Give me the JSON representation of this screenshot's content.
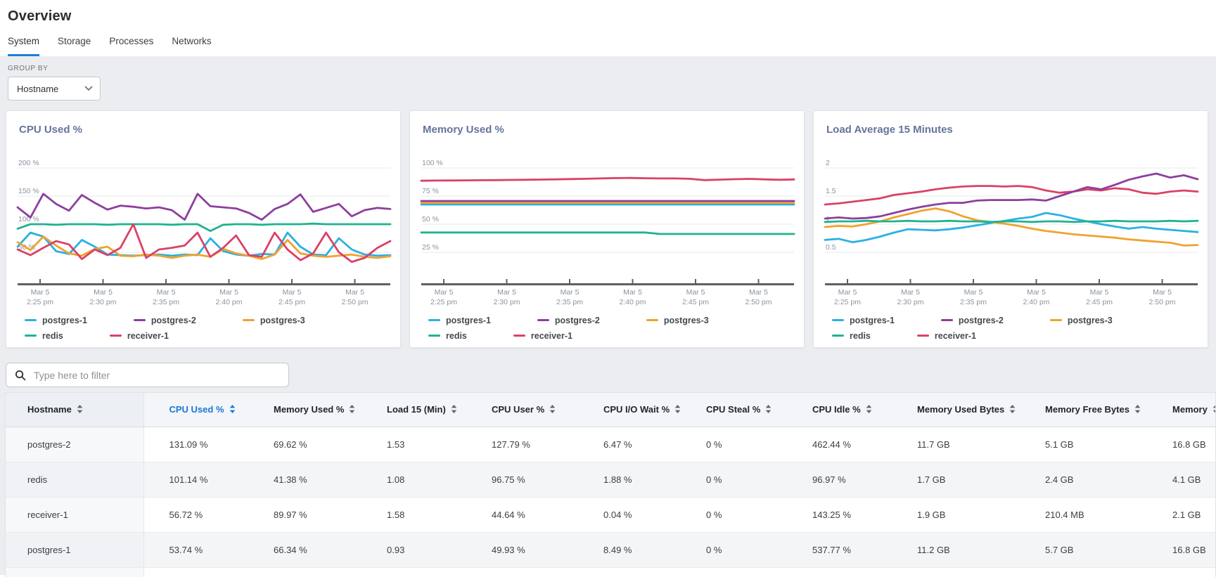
{
  "page": {
    "title": "Overview"
  },
  "tabs": [
    {
      "label": "System",
      "active": true
    },
    {
      "label": "Storage",
      "active": false
    },
    {
      "label": "Processes",
      "active": false
    },
    {
      "label": "Networks",
      "active": false
    }
  ],
  "group_by": {
    "label": "GROUP BY",
    "value": "Hostname"
  },
  "filter": {
    "placeholder": "Type here to filter"
  },
  "colors": {
    "accent": "#1878d8",
    "tab_underline": "#1b7fd6",
    "series": {
      "postgres-1": "#2ab1e3",
      "postgres-2": "#8c3f9e",
      "postgres-3": "#f0a22e",
      "redis": "#1eb48f",
      "receiver-1": "#da4167"
    }
  },
  "chart_data": [
    {
      "type": "line",
      "title": "CPU Used %",
      "ylabel": "%",
      "ylim": [
        -5,
        210
      ],
      "grid": true,
      "legend_position": "bottom",
      "gridlines": [
        {
          "value": 200,
          "label": "200 %"
        },
        {
          "value": 150,
          "label": "150 %"
        },
        {
          "value": 100,
          "label": "100 %"
        },
        {
          "value": 50,
          "label": "50 %"
        }
      ],
      "x_ticks": [
        {
          "line1": "Mar 5",
          "line2": "2:25 pm"
        },
        {
          "line1": "Mar 5",
          "line2": "2:30 pm"
        },
        {
          "line1": "Mar 5",
          "line2": "2:35 pm"
        },
        {
          "line1": "Mar 5",
          "line2": "2:40 pm"
        },
        {
          "line1": "Mar 5",
          "line2": "2:45 pm"
        },
        {
          "line1": "Mar 5",
          "line2": "2:50 pm"
        }
      ],
      "draw_order": [
        0,
        2,
        1,
        3,
        4
      ],
      "series": [
        {
          "name": "postgres-1",
          "values": [
            60,
            85,
            78,
            52,
            47,
            72,
            60,
            46,
            45,
            44,
            45,
            46,
            44,
            46,
            45,
            75,
            52,
            46,
            44,
            47,
            46,
            85,
            60,
            46,
            45,
            75,
            55,
            46,
            44,
            45
          ]
        },
        {
          "name": "postgres-2",
          "values": [
            130,
            112,
            154,
            136,
            124,
            152,
            138,
            126,
            133,
            131,
            128,
            130,
            125,
            108,
            154,
            132,
            130,
            128,
            120,
            108,
            127,
            136,
            153,
            122,
            129,
            136,
            114,
            125,
            129,
            127
          ]
        },
        {
          "name": "postgres-3",
          "values": [
            68,
            54,
            78,
            62,
            48,
            44,
            56,
            60,
            44,
            43,
            46,
            44,
            40,
            44,
            46,
            42,
            56,
            48,
            44,
            38,
            46,
            72,
            48,
            44,
            42,
            44,
            46,
            42,
            40,
            43
          ]
        },
        {
          "name": "redis",
          "values": [
            92,
            100,
            100,
            99,
            100,
            100,
            100,
            99,
            100,
            100,
            100,
            100,
            99,
            100,
            100,
            88,
            99,
            100,
            100,
            99,
            100,
            100,
            100,
            101,
            100,
            100,
            100,
            100,
            100,
            100
          ]
        },
        {
          "name": "receiver-1",
          "values": [
            55,
            45,
            58,
            70,
            64,
            38,
            55,
            45,
            58,
            100,
            40,
            55,
            58,
            62,
            85,
            42,
            58,
            80,
            45,
            42,
            85,
            55,
            36,
            48,
            85,
            50,
            33,
            40,
            58,
            70
          ]
        }
      ]
    },
    {
      "type": "line",
      "title": "Memory Used %",
      "ylabel": "%",
      "ylim": [
        -2.5,
        105
      ],
      "grid": true,
      "legend_position": "bottom",
      "gridlines": [
        {
          "value": 100,
          "label": "100 %"
        },
        {
          "value": 75,
          "label": "75 %"
        },
        {
          "value": 50,
          "label": "50 %"
        },
        {
          "value": 25,
          "label": "25 %"
        }
      ],
      "x_ticks": [
        {
          "line1": "Mar 5",
          "line2": "2:25 pm"
        },
        {
          "line1": "Mar 5",
          "line2": "2:30 pm"
        },
        {
          "line1": "Mar 5",
          "line2": "2:35 pm"
        },
        {
          "line1": "Mar 5",
          "line2": "2:40 pm"
        },
        {
          "line1": "Mar 5",
          "line2": "2:45 pm"
        },
        {
          "line1": "Mar 5",
          "line2": "2:50 pm"
        }
      ],
      "draw_order": [
        0,
        2,
        1,
        3,
        4
      ],
      "series": [
        {
          "name": "postgres-1",
          "values": [
            67.5,
            67.5,
            67.5,
            67.5,
            67.5,
            67.5,
            67.5,
            67.5,
            67.5,
            67.5,
            67.5,
            67.5,
            67.5,
            67.5,
            67.5,
            67.5,
            67.5,
            67.5,
            67.5,
            67.5,
            67.5,
            67.5,
            67.5,
            67.5,
            67.5,
            67.5
          ]
        },
        {
          "name": "postgres-2",
          "values": [
            70.6,
            70.6,
            70.6,
            70.6,
            70.6,
            70.6,
            70.6,
            70.6,
            70.6,
            70.6,
            70.6,
            70.6,
            70.6,
            70.6,
            70.6,
            70.6,
            70.6,
            70.6,
            70.6,
            70.6,
            70.6,
            70.6,
            70.6,
            70.6,
            70.6,
            70.6
          ]
        },
        {
          "name": "postgres-3",
          "values": [
            69,
            69,
            69,
            69,
            69,
            69,
            69,
            69,
            69,
            69,
            69,
            69,
            69,
            69,
            69,
            69,
            69,
            69,
            69,
            69,
            69,
            69,
            69,
            69,
            69,
            69
          ]
        },
        {
          "name": "redis",
          "values": [
            42.6,
            42.6,
            42.6,
            42.6,
            42.6,
            42.6,
            42.6,
            42.6,
            42.6,
            42.6,
            42.6,
            42.6,
            42.6,
            42.6,
            42.6,
            42.6,
            41.3,
            41.3,
            41.3,
            41.3,
            41.3,
            41.3,
            41.3,
            41.3,
            41.3,
            41.3
          ]
        },
        {
          "name": "receiver-1",
          "values": [
            88.6,
            88.8,
            88.9,
            89.0,
            89.1,
            89.2,
            89.4,
            89.5,
            89.7,
            89.9,
            90.1,
            90.4,
            90.7,
            91.0,
            91.1,
            90.9,
            90.7,
            90.7,
            90.4,
            89.2,
            89.6,
            90.0,
            90.3,
            89.9,
            89.5,
            89.8
          ]
        }
      ]
    },
    {
      "type": "line",
      "title": "Load Average 15 Minutes",
      "ylabel": "",
      "ylim": [
        -0.05,
        2.1
      ],
      "grid": true,
      "legend_position": "bottom",
      "gridlines": [
        {
          "value": 2,
          "label": "2"
        },
        {
          "value": 1.5,
          "label": "1.5"
        },
        {
          "value": 1,
          "label": "1"
        },
        {
          "value": 0.5,
          "label": "0.5"
        }
      ],
      "x_ticks": [
        {
          "line1": "Mar 5",
          "line2": "2:25 pm"
        },
        {
          "line1": "Mar 5",
          "line2": "2:30 pm"
        },
        {
          "line1": "Mar 5",
          "line2": "2:35 pm"
        },
        {
          "line1": "Mar 5",
          "line2": "2:40 pm"
        },
        {
          "line1": "Mar 5",
          "line2": "2:45 pm"
        },
        {
          "line1": "Mar 5",
          "line2": "2:50 pm"
        }
      ],
      "draw_order": [
        0,
        2,
        3,
        4,
        1
      ],
      "series": [
        {
          "name": "postgres-1",
          "values": [
            0.72,
            0.74,
            0.68,
            0.72,
            0.78,
            0.85,
            0.91,
            0.9,
            0.89,
            0.91,
            0.94,
            0.98,
            1.02,
            1.06,
            1.1,
            1.13,
            1.2,
            1.16,
            1.1,
            1.05,
            1.0,
            0.96,
            0.92,
            0.95,
            0.92,
            0.9,
            0.88,
            0.86
          ]
        },
        {
          "name": "postgres-2",
          "values": [
            1.1,
            1.12,
            1.1,
            1.11,
            1.14,
            1.2,
            1.26,
            1.31,
            1.35,
            1.38,
            1.38,
            1.42,
            1.43,
            1.43,
            1.43,
            1.44,
            1.42,
            1.5,
            1.58,
            1.66,
            1.62,
            1.7,
            1.79,
            1.85,
            1.9,
            1.83,
            1.87,
            1.8
          ]
        },
        {
          "name": "postgres-3",
          "values": [
            0.95,
            0.97,
            0.96,
            1.0,
            1.05,
            1.12,
            1.18,
            1.24,
            1.28,
            1.23,
            1.14,
            1.07,
            1.04,
            1.01,
            0.97,
            0.92,
            0.88,
            0.85,
            0.82,
            0.8,
            0.78,
            0.76,
            0.73,
            0.71,
            0.69,
            0.67,
            0.62,
            0.63
          ]
        },
        {
          "name": "redis",
          "values": [
            1.04,
            1.05,
            1.05,
            1.06,
            1.05,
            1.05,
            1.06,
            1.05,
            1.05,
            1.06,
            1.05,
            1.05,
            1.04,
            1.05,
            1.05,
            1.04,
            1.05,
            1.05,
            1.04,
            1.05,
            1.05,
            1.06,
            1.05,
            1.05,
            1.05,
            1.06,
            1.05,
            1.06
          ]
        },
        {
          "name": "receiver-1",
          "values": [
            1.35,
            1.37,
            1.4,
            1.43,
            1.46,
            1.52,
            1.55,
            1.58,
            1.62,
            1.65,
            1.67,
            1.68,
            1.68,
            1.67,
            1.68,
            1.66,
            1.6,
            1.56,
            1.58,
            1.62,
            1.6,
            1.64,
            1.62,
            1.56,
            1.54,
            1.58,
            1.6,
            1.58
          ]
        }
      ]
    }
  ],
  "table": {
    "columns": [
      {
        "label": "Hostname",
        "sortable": true,
        "sorted": false
      },
      {
        "label": "CPU Used %",
        "sortable": true,
        "sorted": true
      },
      {
        "label": "Memory Used %",
        "sortable": true,
        "sorted": false
      },
      {
        "label": "Load 15 (Min)",
        "sortable": true,
        "sorted": false
      },
      {
        "label": "CPU User %",
        "sortable": true,
        "sorted": false
      },
      {
        "label": "CPU I/O Wait %",
        "sortable": true,
        "sorted": false
      },
      {
        "label": "CPU Steal %",
        "sortable": true,
        "sorted": false
      },
      {
        "label": "CPU Idle %",
        "sortable": true,
        "sorted": false
      },
      {
        "label": "Memory Used Bytes",
        "sortable": true,
        "sorted": false
      },
      {
        "label": "Memory Free Bytes",
        "sortable": true,
        "sorted": false
      },
      {
        "label": "Memory",
        "sortable": true,
        "sorted": false
      }
    ],
    "rows": [
      [
        "postgres-2",
        "131.09 %",
        "69.62 %",
        "1.53",
        "127.79 %",
        "6.47 %",
        "0 %",
        "462.44 %",
        "11.7 GB",
        "5.1 GB",
        "16.8 GB"
      ],
      [
        "redis",
        "101.14 %",
        "41.38 %",
        "1.08",
        "96.75 %",
        "1.88 %",
        "0 %",
        "96.97 %",
        "1.7 GB",
        "2.4 GB",
        "4.1 GB"
      ],
      [
        "receiver-1",
        "56.72 %",
        "89.97 %",
        "1.58",
        "44.64 %",
        "0.04 %",
        "0 %",
        "143.25 %",
        "1.9 GB",
        "210.4 MB",
        "2.1 GB"
      ],
      [
        "postgres-1",
        "53.74 %",
        "66.34 %",
        "0.93",
        "49.93 %",
        "8.49 %",
        "0 %",
        "537.77 %",
        "11.2 GB",
        "5.7 GB",
        "16.8 GB"
      ]
    ]
  }
}
